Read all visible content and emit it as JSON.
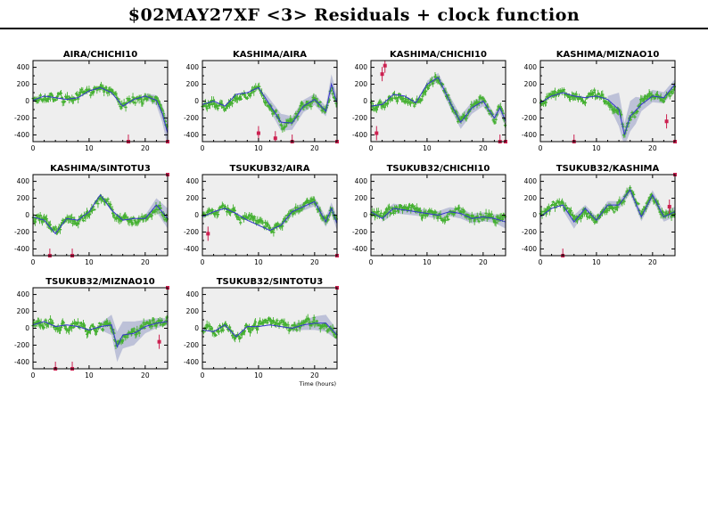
{
  "title": "$02MAY27XF <3> Residuals + clock function",
  "colors": {
    "panel_bg": "#eeeeee",
    "residual": "#44b030",
    "clock": "#3333cc",
    "band": "#b4b8d4",
    "outlier": "#cc2050"
  },
  "chart_data": [
    {
      "type": "scatter",
      "title": "AIRA/CHICHI10",
      "xlabel": "",
      "ylabel": "",
      "xlim": [
        0,
        24
      ],
      "ylim": [
        -480,
        480
      ],
      "xticks": [
        "0",
        "10",
        "20"
      ],
      "yticks": [
        "400",
        "200",
        "0",
        "-200",
        "-400"
      ],
      "clock_x": [
        0,
        2,
        4,
        6,
        8,
        10,
        12,
        14,
        16,
        18,
        20,
        22,
        23,
        24
      ],
      "clock_y": [
        10,
        60,
        40,
        20,
        40,
        120,
        160,
        100,
        -60,
        20,
        60,
        10,
        -140,
        -380
      ],
      "band_x": [
        20,
        22,
        23,
        24
      ],
      "band_hw": [
        30,
        60,
        100,
        160
      ],
      "outliers": [
        [
          17,
          -480
        ],
        [
          24,
          -480
        ]
      ]
    },
    {
      "type": "scatter",
      "title": "KASHIMA/AIRA",
      "xlabel": "",
      "ylabel": "",
      "xlim": [
        0,
        24
      ],
      "ylim": [
        -480,
        480
      ],
      "xticks": [
        "0",
        "10",
        "20"
      ],
      "yticks": [
        "400",
        "200",
        "0",
        "-200",
        "-400"
      ],
      "clock_x": [
        0,
        2,
        4,
        6,
        8,
        10,
        12,
        14,
        16,
        18,
        20,
        22,
        23,
        24
      ],
      "clock_y": [
        -40,
        0,
        -60,
        80,
        100,
        160,
        -40,
        -250,
        -260,
        -60,
        20,
        -120,
        200,
        -20
      ],
      "band_x": [
        11,
        14,
        16,
        22,
        23,
        24
      ],
      "band_hw": [
        50,
        100,
        80,
        60,
        120,
        80
      ],
      "outliers": [
        [
          10,
          -380
        ],
        [
          13,
          -440
        ],
        [
          16,
          -480
        ],
        [
          24,
          -480
        ]
      ]
    },
    {
      "type": "scatter",
      "title": "KASHIMA/CHICHI10",
      "xlabel": "",
      "ylabel": "",
      "xlim": [
        0,
        24
      ],
      "ylim": [
        -480,
        480
      ],
      "xticks": [
        "0",
        "10",
        "20"
      ],
      "yticks": [
        "400",
        "200",
        "0",
        "-200",
        "-400"
      ],
      "clock_x": [
        0,
        2,
        4,
        6,
        8,
        10,
        12,
        14,
        16,
        18,
        20,
        22,
        23,
        24
      ],
      "clock_y": [
        -60,
        -40,
        80,
        60,
        -20,
        200,
        280,
        0,
        -250,
        -80,
        0,
        -200,
        -80,
        -240
      ],
      "band_x": [
        10,
        13,
        16,
        22,
        24
      ],
      "band_hw": [
        40,
        60,
        80,
        50,
        70
      ],
      "outliers": [
        [
          1,
          -380
        ],
        [
          2,
          320
        ],
        [
          2.5,
          420
        ],
        [
          23,
          -480
        ],
        [
          24,
          -480
        ]
      ]
    },
    {
      "type": "scatter",
      "title": "KASHIMA/MIZNAO10",
      "xlabel": "",
      "ylabel": "",
      "xlim": [
        0,
        24
      ],
      "ylim": [
        -480,
        480
      ],
      "xticks": [
        "0",
        "10",
        "20"
      ],
      "yticks": [
        "400",
        "200",
        "0",
        "-200",
        "-400"
      ],
      "clock_x": [
        0,
        2,
        4,
        6,
        8,
        10,
        12,
        14,
        15,
        16,
        18,
        20,
        22,
        24
      ],
      "clock_y": [
        -20,
        60,
        100,
        60,
        40,
        60,
        20,
        -100,
        -400,
        -180,
        -40,
        60,
        40,
        200
      ],
      "band_x": [
        12,
        13,
        14,
        15,
        16,
        17,
        18,
        24
      ],
      "band_hw": [
        40,
        120,
        200,
        140,
        180,
        160,
        80,
        60
      ],
      "outliers": [
        [
          6,
          -480
        ],
        [
          22.5,
          -240
        ],
        [
          24,
          -480
        ]
      ]
    },
    {
      "type": "scatter",
      "title": "KASHIMA/SINTOTU3",
      "xlabel": "",
      "ylabel": "",
      "xlim": [
        0,
        24
      ],
      "ylim": [
        -480,
        480
      ],
      "xticks": [
        "0",
        "10",
        "20"
      ],
      "yticks": [
        "400",
        "200",
        "0",
        "-200",
        "-400"
      ],
      "clock_x": [
        0,
        2,
        4,
        6,
        8,
        10,
        12,
        14,
        16,
        18,
        20,
        22,
        24
      ],
      "clock_y": [
        -20,
        -60,
        -220,
        -40,
        -60,
        40,
        240,
        60,
        -60,
        -40,
        -40,
        120,
        -40
      ],
      "band_x": [
        20,
        22,
        24
      ],
      "band_hw": [
        40,
        80,
        120
      ],
      "outliers": [
        [
          3,
          -480
        ],
        [
          7,
          -480
        ],
        [
          24,
          480
        ]
      ]
    },
    {
      "type": "scatter",
      "title": "TSUKUB32/AIRA",
      "xlabel": "",
      "ylabel": "",
      "xlim": [
        0,
        24
      ],
      "ylim": [
        -480,
        480
      ],
      "xticks": [
        "0",
        "10",
        "20"
      ],
      "yticks": [
        "400",
        "200",
        "0",
        "-200",
        "-400"
      ],
      "clock_x": [
        0,
        2,
        4,
        6,
        8,
        10,
        12,
        14,
        16,
        18,
        20,
        22,
        23,
        24
      ],
      "clock_y": [
        -20,
        40,
        80,
        20,
        -60,
        -120,
        -180,
        -120,
        40,
        100,
        160,
        -80,
        80,
        -100
      ],
      "band_x": [
        14,
        16,
        22,
        24
      ],
      "band_hw": [
        30,
        40,
        60,
        80
      ],
      "outliers": [
        [
          1,
          -220
        ],
        [
          24,
          -480
        ]
      ]
    },
    {
      "type": "scatter",
      "title": "TSUKUB32/CHICHI10",
      "xlabel": "",
      "ylabel": "",
      "xlim": [
        0,
        24
      ],
      "ylim": [
        -480,
        480
      ],
      "xticks": [
        "0",
        "10",
        "20"
      ],
      "yticks": [
        "400",
        "200",
        "0",
        "-200",
        "-400"
      ],
      "clock_x": [
        0,
        2,
        4,
        6,
        8,
        10,
        12,
        14,
        16,
        18,
        20,
        22,
        24
      ],
      "clock_y": [
        40,
        -40,
        80,
        60,
        40,
        20,
        0,
        40,
        20,
        -40,
        -20,
        -40,
        -80
      ],
      "band_x": [
        2,
        3,
        10,
        16,
        22,
        24
      ],
      "band_hw": [
        40,
        60,
        40,
        60,
        50,
        80
      ],
      "outliers": []
    },
    {
      "type": "scatter",
      "title": "TSUKUB32/KASHIMA",
      "xlabel": "",
      "ylabel": "",
      "xlim": [
        0,
        24
      ],
      "ylim": [
        -480,
        480
      ],
      "xticks": [
        "0",
        "10",
        "20"
      ],
      "yticks": [
        "400",
        "200",
        "0",
        "-200",
        "-400"
      ],
      "clock_x": [
        0,
        2,
        4,
        6,
        8,
        10,
        12,
        14,
        16,
        18,
        20,
        22,
        24
      ],
      "clock_y": [
        -20,
        80,
        120,
        -80,
        80,
        -60,
        120,
        120,
        300,
        -20,
        240,
        -20,
        40
      ],
      "band_x": [
        4,
        6,
        8,
        16,
        24
      ],
      "band_hw": [
        60,
        80,
        40,
        50,
        60
      ],
      "outliers": [
        [
          4,
          -480
        ],
        [
          23,
          100
        ],
        [
          24,
          480
        ]
      ]
    },
    {
      "type": "scatter",
      "title": "TSUKUB32/MIZNAO10",
      "xlabel": "",
      "ylabel": "",
      "xlim": [
        0,
        24
      ],
      "ylim": [
        -480,
        480
      ],
      "xticks": [
        "0",
        "10",
        "20"
      ],
      "yticks": [
        "400",
        "200",
        "0",
        "-200",
        "-400"
      ],
      "clock_x": [
        0,
        2,
        4,
        6,
        8,
        10,
        12,
        14,
        15,
        16,
        18,
        20,
        22,
        24
      ],
      "clock_y": [
        40,
        80,
        20,
        40,
        20,
        -20,
        20,
        40,
        -220,
        -80,
        -60,
        20,
        60,
        80
      ],
      "band_x": [
        12,
        14,
        15,
        16,
        18,
        20,
        22,
        24
      ],
      "band_hw": [
        40,
        120,
        180,
        160,
        140,
        80,
        60,
        40
      ],
      "outliers": [
        [
          4,
          -480
        ],
        [
          7,
          -480
        ],
        [
          22.5,
          -160
        ],
        [
          24,
          480
        ]
      ]
    },
    {
      "type": "scatter",
      "title": "TSUKUB32/SINTOTU3",
      "xlabel": "Time (hours)",
      "ylabel": "",
      "xlim": [
        0,
        24
      ],
      "ylim": [
        -480,
        480
      ],
      "xticks": [
        "0",
        "10",
        "20"
      ],
      "yticks": [
        "400",
        "200",
        "0",
        "-200",
        "-400"
      ],
      "clock_x": [
        0,
        2,
        4,
        6,
        8,
        10,
        12,
        14,
        16,
        18,
        20,
        22,
        24
      ],
      "clock_y": [
        -20,
        -40,
        40,
        -100,
        20,
        20,
        40,
        20,
        0,
        40,
        60,
        60,
        -80
      ],
      "band_x": [
        16,
        18,
        20,
        22,
        24
      ],
      "band_hw": [
        40,
        60,
        80,
        100,
        60
      ],
      "outliers": [
        [
          24,
          480
        ]
      ]
    }
  ]
}
